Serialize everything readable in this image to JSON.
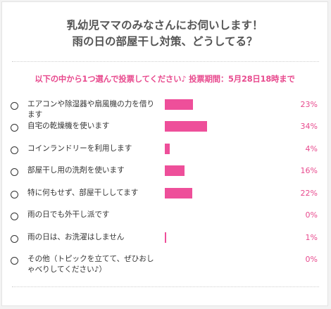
{
  "title_lines": [
    "乳幼児ママのみなさんにお伺いします！",
    "雨の日の部屋干し対策、どうしてる？"
  ],
  "instruction": "以下の中から1つ選んで投票してください♪ 投票期間：5月28日18時まで",
  "colors": {
    "accent": "#e84a8e",
    "bar": "#ee4f9a",
    "title": "#555555"
  },
  "chart_data": {
    "type": "bar",
    "orientation": "horizontal",
    "categories": [
      "エアコンや除湿器や扇風機の力を借ります",
      "自宅の乾燥機を使います",
      "コインランドリーを利用します",
      "部屋干し用の洗剤を使います",
      "特に何もせず、部屋干ししてます",
      "雨の日でも外干し派です",
      "雨の日は、お洗濯はしません",
      "その他（トピックを立てて、ぜひおしゃべりしてください♪）"
    ],
    "values": [
      23,
      34,
      4,
      16,
      22,
      0,
      1,
      0
    ],
    "value_labels": [
      "23%",
      "34%",
      "4%",
      "16%",
      "22%",
      "0%",
      "1%",
      "0%"
    ],
    "unit": "%"
  }
}
